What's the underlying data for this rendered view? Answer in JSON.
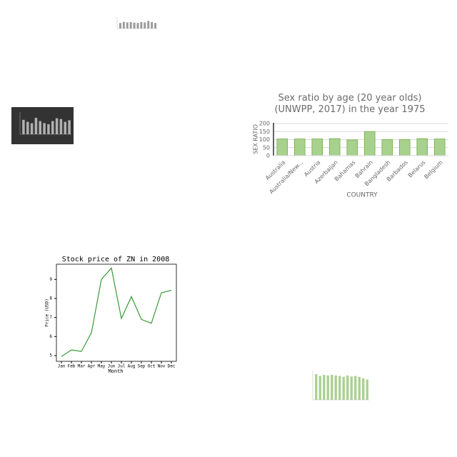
{
  "chart_data": [
    {
      "type": "bar",
      "color": "#9a9a9a",
      "ylim": [
        0,
        100
      ],
      "values": [
        60,
        72,
        66,
        70,
        64,
        60,
        70,
        66,
        82,
        70,
        60
      ]
    },
    {
      "type": "bar",
      "color": "#b0b0b0",
      "background": "#333333",
      "ylim": [
        0,
        100
      ],
      "values": [
        72,
        62,
        55,
        82,
        66,
        56,
        50,
        66,
        80,
        76,
        62,
        70
      ]
    },
    {
      "type": "bar",
      "title": "Sex ratio by age (20 year olds) (UNWPP, 2017) in the year 1975",
      "x_label": "COUNTRY",
      "y_label": "SEX RATIO",
      "color": "#a9d18e",
      "edge_color": "#70ad47",
      "grid": true,
      "categories": [
        "Australia",
        "Australia/New...",
        "Austria",
        "Azerbaijan",
        "Bahamas",
        "Bahrain",
        "Bangladesh",
        "Barbados",
        "Belarus",
        "Belgium"
      ],
      "values": [
        104,
        104,
        104,
        106,
        98,
        150,
        100,
        100,
        106,
        104
      ],
      "ylim": [
        0,
        200
      ],
      "yticks": [
        0,
        50,
        100,
        150,
        200
      ]
    },
    {
      "type": "line",
      "title": "Stock price of ZN in 2008",
      "x_label": "Month",
      "y_label": "Price (USD)",
      "color": "#3a9a3a",
      "categories": [
        "Jan",
        "Feb",
        "Mar",
        "Apr",
        "May",
        "Jun",
        "Jul",
        "Aug",
        "Sep",
        "Oct",
        "Nov",
        "Dec"
      ],
      "values": [
        4.95,
        5.3,
        5.22,
        6.2,
        9.0,
        9.6,
        6.95,
        8.1,
        6.9,
        6.7,
        8.3,
        8.43
      ],
      "ylim": [
        4.7,
        9.8
      ],
      "yticks": [
        5,
        6,
        7,
        8,
        9
      ]
    },
    {
      "type": "bar",
      "color": "#a9d18e",
      "ylim": [
        0,
        100
      ],
      "values": [
        95,
        88,
        92,
        90,
        92,
        90,
        88,
        85,
        90,
        86,
        88,
        85,
        80,
        75
      ]
    }
  ]
}
